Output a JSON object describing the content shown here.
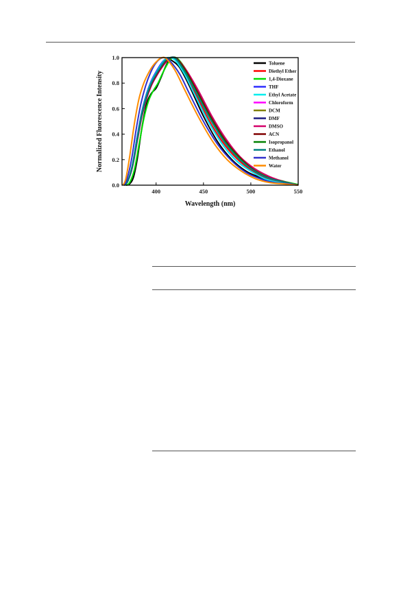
{
  "chart_data": {
    "type": "line",
    "xlabel": "Wavelength (nm)",
    "ylabel": "Normalized Fluorescence Intensity",
    "xlim": [
      364,
      550
    ],
    "ylim": [
      0,
      1.0
    ],
    "x_ticks": [
      400,
      450,
      500,
      550
    ],
    "x_tick_labels": [
      "400",
      "450",
      "500",
      "550"
    ],
    "y_ticks": [
      0.0,
      0.2,
      0.4,
      0.6,
      0.8,
      1.0
    ],
    "y_tick_labels": [
      "0.0",
      "0.2",
      "0.4",
      "0.6",
      "0.8",
      "1.0"
    ],
    "legend_position": "top-right",
    "grid": false,
    "series": [
      {
        "name": "Toluene",
        "color": "#000000",
        "shoulder": true,
        "points": [
          [
            368,
            0
          ],
          [
            372,
            0.01
          ],
          [
            376,
            0.06
          ],
          [
            380,
            0.2
          ],
          [
            385,
            0.45
          ],
          [
            390,
            0.64
          ],
          [
            395,
            0.72
          ],
          [
            400,
            0.76
          ],
          [
            405,
            0.84
          ],
          [
            410,
            0.93
          ],
          [
            414,
            0.98
          ],
          [
            418,
            0.97
          ],
          [
            425,
            0.92
          ],
          [
            435,
            0.78
          ],
          [
            450,
            0.54
          ],
          [
            465,
            0.34
          ],
          [
            480,
            0.2
          ],
          [
            495,
            0.11
          ],
          [
            510,
            0.06
          ],
          [
            525,
            0.03
          ],
          [
            540,
            0.01
          ],
          [
            550,
            0.0
          ]
        ]
      },
      {
        "name": "Diethyl Ether",
        "color": "#ff0000",
        "points": [
          [
            366,
            0
          ],
          [
            370,
            0.03
          ],
          [
            375,
            0.15
          ],
          [
            380,
            0.36
          ],
          [
            385,
            0.56
          ],
          [
            390,
            0.7
          ],
          [
            395,
            0.8
          ],
          [
            400,
            0.87
          ],
          [
            405,
            0.93
          ],
          [
            410,
            0.98
          ],
          [
            415,
            1.0
          ],
          [
            420,
            0.99
          ],
          [
            430,
            0.88
          ],
          [
            440,
            0.74
          ],
          [
            455,
            0.52
          ],
          [
            470,
            0.34
          ],
          [
            485,
            0.21
          ],
          [
            500,
            0.12
          ],
          [
            515,
            0.06
          ],
          [
            530,
            0.03
          ],
          [
            550,
            0.0
          ]
        ]
      },
      {
        "name": "1,4-Dioxane",
        "color": "#00dd00",
        "points": [
          [
            368,
            0
          ],
          [
            372,
            0.02
          ],
          [
            377,
            0.12
          ],
          [
            382,
            0.32
          ],
          [
            387,
            0.52
          ],
          [
            392,
            0.66
          ],
          [
            397,
            0.74
          ],
          [
            402,
            0.8
          ],
          [
            407,
            0.88
          ],
          [
            412,
            0.95
          ],
          [
            417,
            1.0
          ],
          [
            423,
            0.99
          ],
          [
            432,
            0.9
          ],
          [
            445,
            0.73
          ],
          [
            460,
            0.52
          ],
          [
            475,
            0.34
          ],
          [
            490,
            0.21
          ],
          [
            505,
            0.12
          ],
          [
            520,
            0.06
          ],
          [
            535,
            0.03
          ],
          [
            550,
            0.005
          ]
        ]
      },
      {
        "name": "THF",
        "color": "#2b2bff",
        "points": [
          [
            366,
            0
          ],
          [
            370,
            0.03
          ],
          [
            375,
            0.16
          ],
          [
            380,
            0.38
          ],
          [
            385,
            0.58
          ],
          [
            390,
            0.72
          ],
          [
            395,
            0.82
          ],
          [
            400,
            0.89
          ],
          [
            405,
            0.95
          ],
          [
            410,
            0.99
          ],
          [
            414,
            1.0
          ],
          [
            420,
            0.98
          ],
          [
            430,
            0.87
          ],
          [
            440,
            0.72
          ],
          [
            455,
            0.5
          ],
          [
            470,
            0.32
          ],
          [
            485,
            0.19
          ],
          [
            500,
            0.11
          ],
          [
            515,
            0.05
          ],
          [
            530,
            0.02
          ],
          [
            550,
            0.0
          ]
        ]
      },
      {
        "name": "Ethyl Acetate",
        "color": "#00eeee",
        "points": [
          [
            366,
            0
          ],
          [
            370,
            0.03
          ],
          [
            375,
            0.16
          ],
          [
            380,
            0.37
          ],
          [
            385,
            0.57
          ],
          [
            390,
            0.71
          ],
          [
            395,
            0.81
          ],
          [
            400,
            0.88
          ],
          [
            405,
            0.94
          ],
          [
            410,
            0.99
          ],
          [
            414,
            1.0
          ],
          [
            420,
            0.98
          ],
          [
            430,
            0.87
          ],
          [
            440,
            0.72
          ],
          [
            455,
            0.5
          ],
          [
            470,
            0.32
          ],
          [
            485,
            0.19
          ],
          [
            500,
            0.11
          ],
          [
            515,
            0.05
          ],
          [
            530,
            0.02
          ],
          [
            550,
            0.0
          ]
        ]
      },
      {
        "name": "Chloroform",
        "color": "#ff00ff",
        "points": [
          [
            366,
            0
          ],
          [
            370,
            0.03
          ],
          [
            375,
            0.15
          ],
          [
            380,
            0.35
          ],
          [
            385,
            0.55
          ],
          [
            390,
            0.69
          ],
          [
            395,
            0.79
          ],
          [
            400,
            0.86
          ],
          [
            405,
            0.92
          ],
          [
            410,
            0.97
          ],
          [
            415,
            1.0
          ],
          [
            421,
            0.99
          ],
          [
            431,
            0.88
          ],
          [
            442,
            0.73
          ],
          [
            457,
            0.52
          ],
          [
            472,
            0.34
          ],
          [
            487,
            0.21
          ],
          [
            502,
            0.12
          ],
          [
            517,
            0.06
          ],
          [
            532,
            0.03
          ],
          [
            550,
            0.0
          ]
        ]
      },
      {
        "name": "DCM",
        "color": "#808000",
        "points": [
          [
            366,
            0
          ],
          [
            370,
            0.03
          ],
          [
            375,
            0.15
          ],
          [
            380,
            0.35
          ],
          [
            385,
            0.55
          ],
          [
            390,
            0.69
          ],
          [
            395,
            0.79
          ],
          [
            400,
            0.86
          ],
          [
            405,
            0.92
          ],
          [
            410,
            0.97
          ],
          [
            415,
            1.0
          ],
          [
            421,
            0.99
          ],
          [
            431,
            0.88
          ],
          [
            442,
            0.73
          ],
          [
            457,
            0.52
          ],
          [
            472,
            0.34
          ],
          [
            487,
            0.21
          ],
          [
            502,
            0.12
          ],
          [
            517,
            0.06
          ],
          [
            532,
            0.03
          ],
          [
            550,
            0.0
          ]
        ]
      },
      {
        "name": "DMF",
        "color": "#1a1a80",
        "points": [
          [
            366,
            0
          ],
          [
            370,
            0.03
          ],
          [
            375,
            0.15
          ],
          [
            380,
            0.36
          ],
          [
            385,
            0.56
          ],
          [
            390,
            0.7
          ],
          [
            395,
            0.8
          ],
          [
            400,
            0.87
          ],
          [
            405,
            0.93
          ],
          [
            410,
            0.98
          ],
          [
            416,
            1.0
          ],
          [
            422,
            0.99
          ],
          [
            432,
            0.89
          ],
          [
            443,
            0.74
          ],
          [
            458,
            0.53
          ],
          [
            473,
            0.35
          ],
          [
            488,
            0.22
          ],
          [
            503,
            0.12
          ],
          [
            518,
            0.06
          ],
          [
            533,
            0.03
          ],
          [
            550,
            0.0
          ]
        ]
      },
      {
        "name": "DMSO",
        "color": "#d4006a",
        "points": [
          [
            366,
            0
          ],
          [
            370,
            0.03
          ],
          [
            375,
            0.14
          ],
          [
            380,
            0.34
          ],
          [
            385,
            0.54
          ],
          [
            390,
            0.68
          ],
          [
            395,
            0.78
          ],
          [
            400,
            0.85
          ],
          [
            405,
            0.91
          ],
          [
            410,
            0.96
          ],
          [
            416,
            1.0
          ],
          [
            422,
            0.99
          ],
          [
            432,
            0.9
          ],
          [
            444,
            0.75
          ],
          [
            459,
            0.54
          ],
          [
            474,
            0.36
          ],
          [
            489,
            0.22
          ],
          [
            504,
            0.13
          ],
          [
            519,
            0.07
          ],
          [
            534,
            0.03
          ],
          [
            550,
            0.0
          ]
        ]
      },
      {
        "name": "ACN",
        "color": "#800000",
        "points": [
          [
            366,
            0
          ],
          [
            370,
            0.03
          ],
          [
            375,
            0.15
          ],
          [
            380,
            0.35
          ],
          [
            385,
            0.55
          ],
          [
            390,
            0.69
          ],
          [
            395,
            0.79
          ],
          [
            400,
            0.86
          ],
          [
            405,
            0.92
          ],
          [
            410,
            0.97
          ],
          [
            416,
            1.0
          ],
          [
            422,
            0.99
          ],
          [
            432,
            0.89
          ],
          [
            443,
            0.74
          ],
          [
            458,
            0.53
          ],
          [
            473,
            0.35
          ],
          [
            488,
            0.22
          ],
          [
            503,
            0.12
          ],
          [
            518,
            0.06
          ],
          [
            533,
            0.03
          ],
          [
            550,
            0.0
          ]
        ]
      },
      {
        "name": "Isopropanol",
        "color": "#008000",
        "points": [
          [
            366,
            0
          ],
          [
            370,
            0.03
          ],
          [
            375,
            0.15
          ],
          [
            380,
            0.36
          ],
          [
            385,
            0.56
          ],
          [
            390,
            0.7
          ],
          [
            395,
            0.8
          ],
          [
            400,
            0.87
          ],
          [
            405,
            0.93
          ],
          [
            410,
            0.98
          ],
          [
            415,
            1.0
          ],
          [
            421,
            0.99
          ],
          [
            431,
            0.89
          ],
          [
            442,
            0.74
          ],
          [
            457,
            0.53
          ],
          [
            472,
            0.35
          ],
          [
            487,
            0.22
          ],
          [
            502,
            0.12
          ],
          [
            517,
            0.06
          ],
          [
            532,
            0.03
          ],
          [
            550,
            0.0
          ]
        ]
      },
      {
        "name": "Ethanol",
        "color": "#008080",
        "points": [
          [
            366,
            0
          ],
          [
            370,
            0.03
          ],
          [
            375,
            0.15
          ],
          [
            380,
            0.36
          ],
          [
            385,
            0.56
          ],
          [
            390,
            0.7
          ],
          [
            395,
            0.8
          ],
          [
            400,
            0.87
          ],
          [
            405,
            0.93
          ],
          [
            410,
            0.98
          ],
          [
            415,
            1.0
          ],
          [
            421,
            0.99
          ],
          [
            431,
            0.88
          ],
          [
            442,
            0.73
          ],
          [
            457,
            0.52
          ],
          [
            472,
            0.34
          ],
          [
            487,
            0.21
          ],
          [
            502,
            0.12
          ],
          [
            517,
            0.06
          ],
          [
            532,
            0.03
          ],
          [
            550,
            0.0
          ]
        ]
      },
      {
        "name": "Methanol",
        "color": "#3030cc",
        "points": [
          [
            366,
            0
          ],
          [
            369,
            0.04
          ],
          [
            374,
            0.2
          ],
          [
            379,
            0.44
          ],
          [
            384,
            0.64
          ],
          [
            389,
            0.78
          ],
          [
            394,
            0.88
          ],
          [
            399,
            0.95
          ],
          [
            404,
            0.99
          ],
          [
            409,
            1.0
          ],
          [
            415,
            0.97
          ],
          [
            425,
            0.87
          ],
          [
            435,
            0.72
          ],
          [
            450,
            0.5
          ],
          [
            465,
            0.32
          ],
          [
            480,
            0.19
          ],
          [
            495,
            0.1
          ],
          [
            510,
            0.05
          ],
          [
            525,
            0.02
          ],
          [
            540,
            0.01
          ],
          [
            550,
            0.0
          ]
        ]
      },
      {
        "name": "Water",
        "color": "#ff8c00",
        "points": [
          [
            365,
            0
          ],
          [
            368,
            0.05
          ],
          [
            372,
            0.22
          ],
          [
            377,
            0.48
          ],
          [
            382,
            0.68
          ],
          [
            387,
            0.8
          ],
          [
            392,
            0.88
          ],
          [
            397,
            0.94
          ],
          [
            402,
            0.98
          ],
          [
            406,
            1.0
          ],
          [
            411,
            0.99
          ],
          [
            420,
            0.9
          ],
          [
            430,
            0.75
          ],
          [
            445,
            0.53
          ],
          [
            460,
            0.34
          ],
          [
            475,
            0.2
          ],
          [
            490,
            0.11
          ],
          [
            505,
            0.05
          ],
          [
            520,
            0.02
          ],
          [
            535,
            0.01
          ],
          [
            550,
            0.0
          ]
        ]
      }
    ]
  }
}
